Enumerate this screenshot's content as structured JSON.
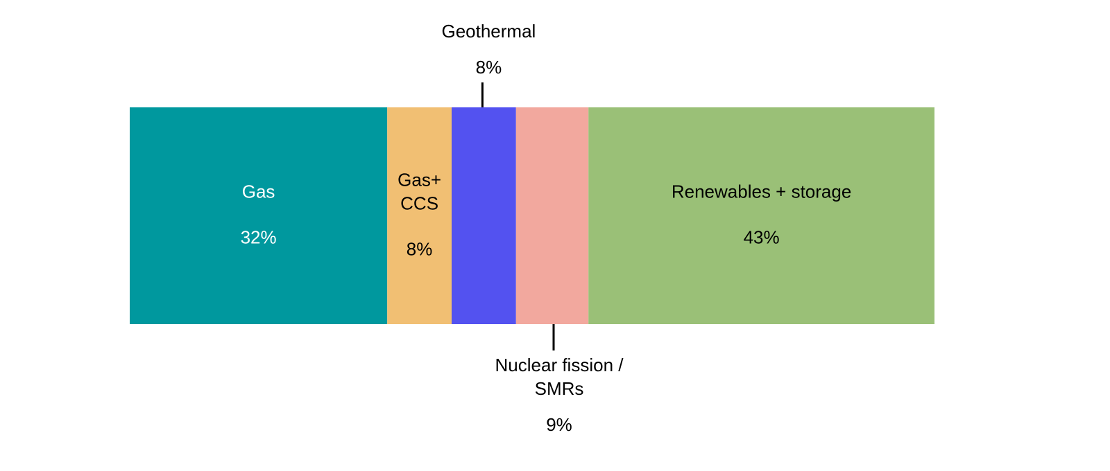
{
  "chart_data": {
    "type": "bar",
    "orientation": "horizontal",
    "stacked": true,
    "axis_range": [
      0,
      100
    ],
    "unit": "%",
    "grid": false,
    "legend": "none",
    "segments": [
      {
        "key": "gas",
        "label_lines": [
          "Gas"
        ],
        "value": 32,
        "value_label": "32%",
        "color": "#00989E",
        "text_color": "#FFFFFF",
        "label_position": "inside"
      },
      {
        "key": "gas-ccs",
        "label_lines": [
          "Gas+",
          "CCS"
        ],
        "value": 8,
        "value_label": "8%",
        "color": "#F1BF73",
        "text_color": "#000000",
        "label_position": "inside"
      },
      {
        "key": "geothermal",
        "label_lines": [
          "Geothermal"
        ],
        "value": 8,
        "value_label": "8%",
        "color": "#5352F0",
        "text_color": "#000000",
        "label_position": "above"
      },
      {
        "key": "nuclear",
        "label_lines": [
          "Nuclear fission /",
          "SMRs"
        ],
        "value": 9,
        "value_label": "9%",
        "color": "#F2A89E",
        "text_color": "#000000",
        "label_position": "below"
      },
      {
        "key": "renewables",
        "label_lines": [
          "Renewables + storage"
        ],
        "value": 43,
        "value_label": "43%",
        "color": "#9AC077",
        "text_color": "#000000",
        "label_position": "inside"
      }
    ]
  }
}
